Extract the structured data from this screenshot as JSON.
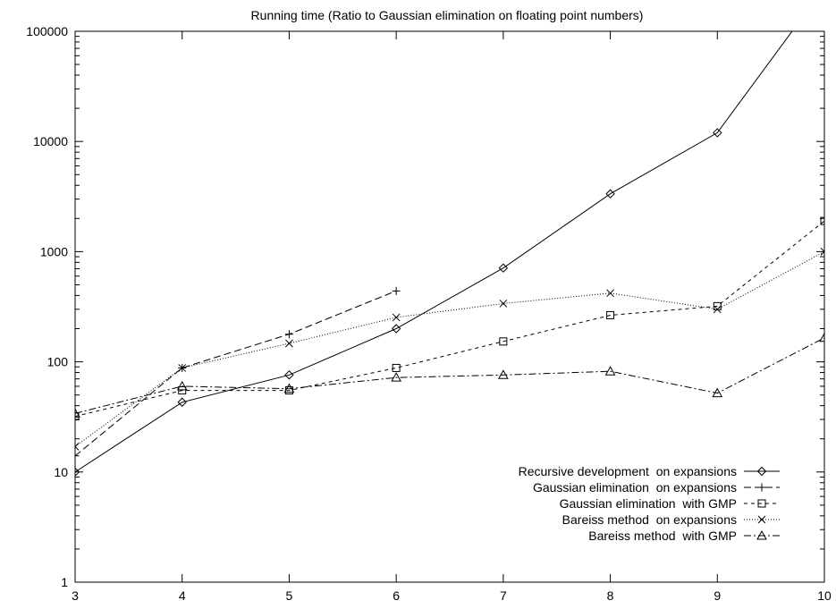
{
  "chart_data": {
    "type": "line",
    "title": "Running time (Ratio to Gaussian elimination on floating point numbers)",
    "xlabel": "",
    "ylabel": "",
    "x_scale": "linear",
    "y_scale": "log",
    "xlim": [
      3,
      10
    ],
    "ylim": [
      1,
      100000
    ],
    "x_ticks": [
      "3",
      "4",
      "5",
      "6",
      "7",
      "8",
      "9",
      "10"
    ],
    "y_ticks": [
      "1",
      "10",
      "100",
      "1000",
      "10000",
      "100000"
    ],
    "grid": false,
    "legend_position": "bottom-right",
    "series": [
      {
        "name": "Recursive development  on expansions",
        "marker": "diamond",
        "dash": "solid",
        "points": [
          [
            3,
            10
          ],
          [
            4,
            43
          ],
          [
            5,
            76
          ],
          [
            6,
            200
          ],
          [
            7,
            710
          ],
          [
            8,
            3350
          ],
          [
            9,
            12000
          ],
          [
            10,
            250000
          ]
        ]
      },
      {
        "name": "Gaussian elimination  on expansions",
        "marker": "plus",
        "dash": "long-dash",
        "points": [
          [
            3,
            14
          ],
          [
            4,
            88
          ],
          [
            5,
            178
          ],
          [
            6,
            440
          ]
        ]
      },
      {
        "name": "Gaussian elimination  with GMP",
        "marker": "square",
        "dash": "short-dash",
        "points": [
          [
            3,
            32
          ],
          [
            4,
            55
          ],
          [
            5,
            55
          ],
          [
            6,
            88
          ],
          [
            7,
            153
          ],
          [
            8,
            265
          ],
          [
            9,
            320
          ],
          [
            10,
            1900
          ]
        ]
      },
      {
        "name": "Bareiss method  on expansions",
        "marker": "cross",
        "dash": "dotted",
        "points": [
          [
            3,
            17
          ],
          [
            4,
            88
          ],
          [
            5,
            147
          ],
          [
            6,
            253
          ],
          [
            7,
            338
          ],
          [
            8,
            420
          ],
          [
            9,
            300
          ],
          [
            10,
            1000
          ]
        ]
      },
      {
        "name": "Bareiss method  with GMP",
        "marker": "triangle",
        "dash": "dash-dot",
        "points": [
          [
            3,
            34
          ],
          [
            4,
            60
          ],
          [
            5,
            57
          ],
          [
            6,
            72
          ],
          [
            7,
            76
          ],
          [
            8,
            82
          ],
          [
            9,
            52
          ],
          [
            10,
            165
          ]
        ]
      }
    ]
  }
}
